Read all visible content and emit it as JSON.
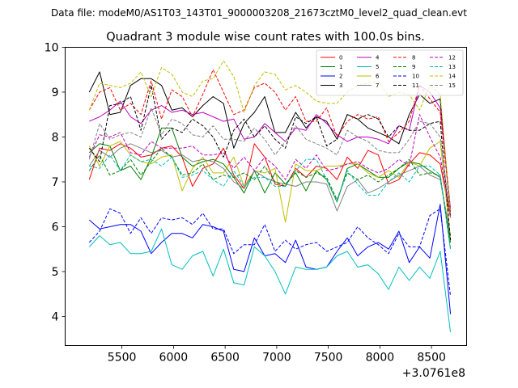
{
  "chart_data": {
    "type": "line",
    "suptitle": "Data file: modeM0/AS1T03_143T01_9000003208_21673cztM0_level2_quad_clean.evt",
    "title": "Quadrant 3 module wise count rates with 100.0s bins.",
    "xlabel": "",
    "ylabel": "",
    "x_offset_label": "+3.0761e8",
    "xlim": [
      4950,
      8840
    ],
    "ylim": [
      3.35,
      10.0
    ],
    "x_ticks": [
      5500,
      6000,
      6500,
      7000,
      7500,
      8000,
      8500
    ],
    "y_ticks": [
      4,
      5,
      6,
      7,
      8,
      9,
      10
    ],
    "x": [
      5184,
      5284,
      5384,
      5484,
      5584,
      5684,
      5784,
      5884,
      5984,
      6084,
      6184,
      6284,
      6384,
      6484,
      6584,
      6684,
      6784,
      6884,
      6984,
      7084,
      7184,
      7284,
      7384,
      7484,
      7584,
      7684,
      7784,
      7884,
      7984,
      8084,
      8184,
      8284,
      8384,
      8484,
      8584,
      8684
    ],
    "legend": {
      "location": "top-right",
      "columns": 4
    },
    "series": [
      {
        "name": "0",
        "color": "#ff0000",
        "dash": "solid",
        "values": [
          7.05,
          7.75,
          7.7,
          7.85,
          7.75,
          7.55,
          7.6,
          7.75,
          7.8,
          7.55,
          6.9,
          7.3,
          7.4,
          7.75,
          7.15,
          6.85,
          7.85,
          7.55,
          6.95,
          6.9,
          7.3,
          7.1,
          7.35,
          7.3,
          7.05,
          7.55,
          7.3,
          7.7,
          7.6,
          6.95,
          7.05,
          7.4,
          7.65,
          7.6,
          7.4,
          6.2
        ]
      },
      {
        "name": "1",
        "color": "#008000",
        "dash": "solid",
        "values": [
          7.65,
          7.85,
          7.8,
          7.25,
          7.35,
          7.05,
          7.55,
          8.2,
          8.2,
          7.55,
          7.35,
          7.45,
          7.5,
          7.4,
          7.1,
          6.75,
          7.25,
          6.75,
          7.2,
          6.95,
          7.2,
          6.8,
          7.25,
          7.05,
          6.55,
          7.3,
          7.4,
          7.25,
          7.1,
          7.1,
          7.3,
          7.45,
          7.4,
          7.25,
          7.1,
          5.65
        ]
      },
      {
        "name": "2",
        "color": "#0000ff",
        "dash": "solid",
        "values": [
          6.15,
          5.95,
          6.0,
          6.05,
          6.05,
          5.9,
          5.4,
          5.65,
          5.85,
          5.85,
          5.75,
          6.05,
          6.0,
          5.9,
          5.05,
          5.0,
          5.75,
          5.35,
          5.4,
          5.2,
          5.7,
          5.1,
          5.05,
          5.1,
          5.45,
          5.75,
          5.35,
          5.55,
          5.65,
          5.5,
          5.9,
          5.2,
          5.55,
          5.3,
          6.5,
          4.05
        ]
      },
      {
        "name": "3",
        "color": "#000000",
        "dash": "solid",
        "values": [
          9.0,
          9.45,
          8.5,
          8.55,
          9.15,
          9.3,
          9.3,
          9.15,
          8.6,
          8.65,
          8.45,
          8.7,
          8.9,
          8.75,
          7.75,
          8.3,
          8.55,
          8.9,
          8.1,
          8.1,
          8.55,
          8.2,
          8.45,
          8.35,
          7.95,
          8.5,
          8.4,
          8.2,
          8.1,
          8.0,
          7.85,
          8.5,
          8.95,
          8.75,
          8.85,
          6.25
        ]
      },
      {
        "name": "4",
        "color": "#bf00bf",
        "dash": "solid",
        "values": [
          8.35,
          8.45,
          8.6,
          8.8,
          8.45,
          8.3,
          8.6,
          8.7,
          8.55,
          8.6,
          8.5,
          8.55,
          8.45,
          8.35,
          8.4,
          7.95,
          8.0,
          8.3,
          8.1,
          7.9,
          8.2,
          8.15,
          8.5,
          8.3,
          8.05,
          7.9,
          8.0,
          8.0,
          7.95,
          7.85,
          8.25,
          8.15,
          9.15,
          9.0,
          8.65,
          6.4
        ]
      },
      {
        "name": "5",
        "color": "#00bfbf",
        "dash": "solid",
        "values": [
          5.55,
          5.8,
          5.6,
          5.65,
          5.4,
          5.4,
          5.45,
          5.95,
          5.15,
          5.05,
          5.35,
          5.45,
          4.9,
          5.5,
          4.75,
          4.7,
          5.55,
          5.35,
          5.0,
          4.5,
          5.1,
          5.05,
          5.05,
          5.1,
          5.35,
          5.45,
          5.1,
          5.15,
          4.95,
          4.6,
          5.1,
          4.8,
          5.1,
          4.85,
          5.45,
          3.65
        ]
      },
      {
        "name": "6",
        "color": "#bfbf00",
        "dash": "solid",
        "values": [
          7.8,
          7.35,
          7.8,
          7.9,
          7.6,
          7.45,
          7.4,
          7.55,
          7.6,
          6.8,
          7.3,
          7.55,
          7.2,
          7.2,
          7.55,
          6.9,
          7.25,
          7.2,
          7.3,
          6.1,
          7.4,
          7.25,
          7.25,
          7.35,
          7.35,
          7.4,
          7.4,
          7.2,
          7.1,
          7.25,
          7.1,
          7.45,
          7.35,
          7.75,
          7.9,
          5.7
        ]
      },
      {
        "name": "7",
        "color": "#808080",
        "dash": "solid",
        "values": [
          7.35,
          7.7,
          7.55,
          7.75,
          7.85,
          7.75,
          7.65,
          7.7,
          7.55,
          7.6,
          7.45,
          7.5,
          7.45,
          7.3,
          7.0,
          6.85,
          7.25,
          7.1,
          7.0,
          6.95,
          6.9,
          7.0,
          7.0,
          6.95,
          6.35,
          6.9,
          7.05,
          6.75,
          6.85,
          7.0,
          7.15,
          7.25,
          7.35,
          7.15,
          7.05,
          5.8
        ]
      },
      {
        "name": "8",
        "color": "#ff0000",
        "dash": "dashed",
        "values": [
          8.6,
          9.0,
          9.1,
          8.6,
          8.75,
          8.5,
          9.25,
          8.4,
          9.05,
          8.9,
          8.45,
          8.95,
          9.5,
          9.0,
          8.5,
          8.6,
          9.1,
          9.2,
          9.0,
          8.6,
          8.9,
          8.35,
          8.35,
          8.65,
          8.0,
          8.35,
          8.5,
          8.4,
          8.45,
          7.9,
          8.1,
          8.35,
          9.15,
          8.85,
          8.55,
          6.35
        ]
      },
      {
        "name": "9",
        "color": "#008000",
        "dash": "dashed",
        "values": [
          7.25,
          7.6,
          7.15,
          7.25,
          7.5,
          7.15,
          7.45,
          7.75,
          7.55,
          7.15,
          7.2,
          7.4,
          7.05,
          7.15,
          7.1,
          7.2,
          7.05,
          7.35,
          7.0,
          6.9,
          7.25,
          7.1,
          7.2,
          7.1,
          6.6,
          7.2,
          7.05,
          7.15,
          7.0,
          7.15,
          7.3,
          7.5,
          7.15,
          7.2,
          7.15,
          5.5
        ]
      },
      {
        "name": "10",
        "color": "#0000ff",
        "dash": "dashed",
        "values": [
          5.65,
          5.9,
          6.4,
          6.3,
          5.85,
          6.2,
          5.85,
          6.2,
          6.15,
          6.2,
          6.05,
          6.3,
          5.95,
          5.95,
          5.4,
          5.6,
          5.6,
          6.05,
          5.45,
          5.7,
          5.5,
          5.6,
          5.65,
          5.45,
          5.55,
          5.65,
          6.0,
          5.75,
          5.6,
          5.4,
          5.85,
          5.55,
          5.55,
          6.25,
          6.4,
          4.45
        ]
      },
      {
        "name": "11",
        "color": "#000000",
        "dash": "dashed",
        "values": [
          7.75,
          7.45,
          8.7,
          8.75,
          8.9,
          8.15,
          9.15,
          7.95,
          8.2,
          8.1,
          8.4,
          8.25,
          8.0,
          7.55,
          8.15,
          8.4,
          8.0,
          8.25,
          7.95,
          7.75,
          8.45,
          8.3,
          8.45,
          7.8,
          7.95,
          8.5,
          8.4,
          8.5,
          8.4,
          8.0,
          8.25,
          8.15,
          8.15,
          8.3,
          8.35,
          5.7
        ]
      },
      {
        "name": "12",
        "color": "#bf00bf",
        "dash": "dashed",
        "values": [
          7.55,
          8.05,
          8.0,
          8.1,
          7.65,
          7.6,
          7.9,
          7.75,
          7.75,
          7.75,
          7.8,
          7.6,
          7.6,
          7.65,
          7.3,
          7.55,
          7.25,
          7.55,
          7.35,
          7.05,
          7.5,
          7.3,
          7.6,
          7.25,
          7.3,
          7.4,
          7.45,
          7.3,
          7.2,
          7.3,
          7.5,
          7.35,
          8.5,
          8.0,
          7.55,
          6.25
        ]
      },
      {
        "name": "13",
        "color": "#00bfbf",
        "dash": "dashed",
        "values": [
          7.35,
          7.3,
          7.6,
          7.25,
          7.6,
          7.45,
          7.5,
          7.35,
          7.55,
          7.1,
          7.15,
          7.25,
          7.05,
          6.9,
          7.25,
          6.9,
          7.1,
          7.1,
          6.9,
          6.9,
          7.25,
          7.5,
          7.5,
          7.05,
          6.55,
          7.25,
          6.95,
          6.7,
          6.7,
          7.0,
          7.2,
          7.0,
          7.35,
          7.35,
          7.15,
          5.5
        ]
      },
      {
        "name": "14",
        "color": "#bfbf00",
        "dash": "dashed",
        "values": [
          8.6,
          9.2,
          9.15,
          9.1,
          9.2,
          9.45,
          8.9,
          9.55,
          9.4,
          9.0,
          8.9,
          9.25,
          9.3,
          9.7,
          9.35,
          8.55,
          9.15,
          9.45,
          9.4,
          9.05,
          9.15,
          9.0,
          8.8,
          8.75,
          8.75,
          9.0,
          9.15,
          9.2,
          9.25,
          8.9,
          9.0,
          8.95,
          8.6,
          9.15,
          8.95,
          6.3
        ]
      },
      {
        "name": "15",
        "color": "#808080",
        "dash": "dashed",
        "values": [
          7.5,
          8.3,
          7.95,
          8.05,
          8.1,
          8.0,
          8.65,
          8.05,
          8.4,
          8.3,
          8.05,
          8.0,
          8.25,
          7.95,
          7.95,
          7.9,
          8.2,
          7.95,
          7.6,
          7.9,
          8.25,
          7.95,
          7.85,
          7.75,
          7.6,
          8.15,
          8.0,
          7.9,
          7.7,
          7.65,
          7.65,
          7.95,
          8.35,
          8.3,
          8.0,
          6.2
        ]
      }
    ]
  }
}
